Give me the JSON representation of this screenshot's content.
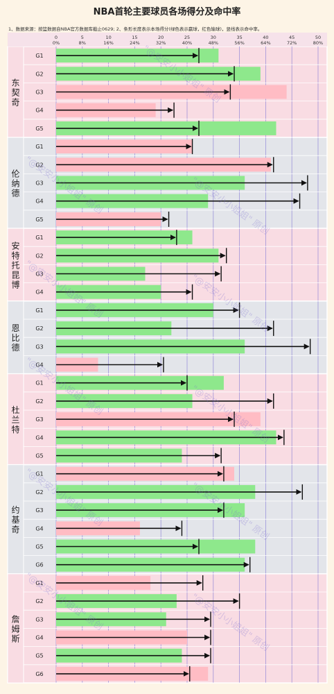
{
  "title": "NBA首轮主要球员各场得分及命中率",
  "note": "1、数据来源：按篮数据自NBA官方数据库截止0629; 2、条形长度表示本场得分(绿色表示赢球，红色输球)，竖线表示命中率。",
  "watermark": "\"@安安小小姐姐\" 原创",
  "colors": {
    "win": "#8ee88c",
    "loss": "#ffbcc4",
    "arrow": "#111111",
    "grid": "#8a7fd6",
    "group_bg_a": "#f9dce3",
    "group_bg_b": "#e3e5ea",
    "label_col": "#ece6ee"
  },
  "chart_data": {
    "type": "bar",
    "score_axis": {
      "label": "",
      "ticks": [
        0,
        5,
        10,
        15,
        20,
        25,
        30,
        35,
        40,
        45,
        50
      ],
      "range": [
        0,
        50
      ]
    },
    "pct_axis": {
      "label": "",
      "ticks": [
        "0%",
        "8%",
        "16%",
        "24%",
        "32%",
        "40%",
        "48%",
        "56%",
        "64%",
        "72%",
        "80%"
      ],
      "range": [
        0,
        80
      ]
    },
    "legend": {
      "win": "赢球",
      "loss": "输球",
      "line": "命中率"
    },
    "players": [
      {
        "name": "东契奇",
        "games": [
          {
            "game": "G1",
            "points": 31,
            "win": true,
            "fg_pct": 43.6
          },
          {
            "game": "G2",
            "points": 39,
            "win": true,
            "fg_pct": 54.4
          },
          {
            "game": "G3",
            "points": 44,
            "win": false,
            "fg_pct": 53.2
          },
          {
            "game": "G4",
            "points": 19,
            "win": false,
            "fg_pct": 36.0
          },
          {
            "game": "G5",
            "points": 42,
            "win": true,
            "fg_pct": 43.6
          }
        ]
      },
      {
        "name": "伦纳德",
        "games": [
          {
            "game": "G1",
            "points": 26,
            "win": false,
            "fg_pct": 41.6
          },
          {
            "game": "G2",
            "points": 41,
            "win": false,
            "fg_pct": 66.4
          },
          {
            "game": "G3",
            "points": 36,
            "win": true,
            "fg_pct": 76.8
          },
          {
            "game": "G4",
            "points": 29,
            "win": true,
            "fg_pct": 74.4
          },
          {
            "game": "G5",
            "points": 20,
            "win": false,
            "fg_pct": 34.4
          }
        ]
      },
      {
        "name": "安特托昆博",
        "games": [
          {
            "game": "G1",
            "points": 26,
            "win": true,
            "fg_pct": 36.8
          },
          {
            "game": "G2",
            "points": 31,
            "win": true,
            "fg_pct": 52.0
          },
          {
            "game": "G3",
            "points": 17,
            "win": true,
            "fg_pct": 50.4
          },
          {
            "game": "G4",
            "points": 20,
            "win": true,
            "fg_pct": 41.6
          }
        ]
      },
      {
        "name": "恩比德",
        "games": [
          {
            "game": "G1",
            "points": 30,
            "win": true,
            "fg_pct": 56.0
          },
          {
            "game": "G2",
            "points": 22,
            "win": true,
            "fg_pct": 66.4
          },
          {
            "game": "G3",
            "points": 36,
            "win": true,
            "fg_pct": 77.6
          },
          {
            "game": "G4",
            "points": 8,
            "win": false,
            "fg_pct": 32.8
          }
        ]
      },
      {
        "name": "杜兰特",
        "games": [
          {
            "game": "G1",
            "points": 32,
            "win": true,
            "fg_pct": 40.0
          },
          {
            "game": "G2",
            "points": 26,
            "win": true,
            "fg_pct": 66.4
          },
          {
            "game": "G3",
            "points": 39,
            "win": false,
            "fg_pct": 54.4
          },
          {
            "game": "G4",
            "points": 42,
            "win": true,
            "fg_pct": 69.6
          },
          {
            "game": "G5",
            "points": 24,
            "win": true,
            "fg_pct": 50.4
          }
        ]
      },
      {
        "name": "约基奇",
        "games": [
          {
            "game": "G1",
            "points": 34,
            "win": false,
            "fg_pct": 51.2
          },
          {
            "game": "G2",
            "points": 38,
            "win": true,
            "fg_pct": 75.2
          },
          {
            "game": "G3",
            "points": 36,
            "win": true,
            "fg_pct": 51.2
          },
          {
            "game": "G4",
            "points": 16,
            "win": false,
            "fg_pct": 38.4
          },
          {
            "game": "G5",
            "points": 38,
            "win": true,
            "fg_pct": 43.6
          },
          {
            "game": "G6",
            "points": 36,
            "win": true,
            "fg_pct": 59.2
          }
        ]
      },
      {
        "name": "詹姆斯",
        "games": [
          {
            "game": "G1",
            "points": 18,
            "win": false,
            "fg_pct": 44.8
          },
          {
            "game": "G2",
            "points": 23,
            "win": true,
            "fg_pct": 56.0
          },
          {
            "game": "G3",
            "points": 21,
            "win": true,
            "fg_pct": 47.2
          },
          {
            "game": "G4",
            "points": 25,
            "win": false,
            "fg_pct": 47.2
          },
          {
            "game": "G5",
            "points": 24,
            "win": true,
            "fg_pct": 47.2
          },
          {
            "game": "G6",
            "points": 29,
            "win": false,
            "fg_pct": 40.8
          }
        ]
      }
    ]
  }
}
